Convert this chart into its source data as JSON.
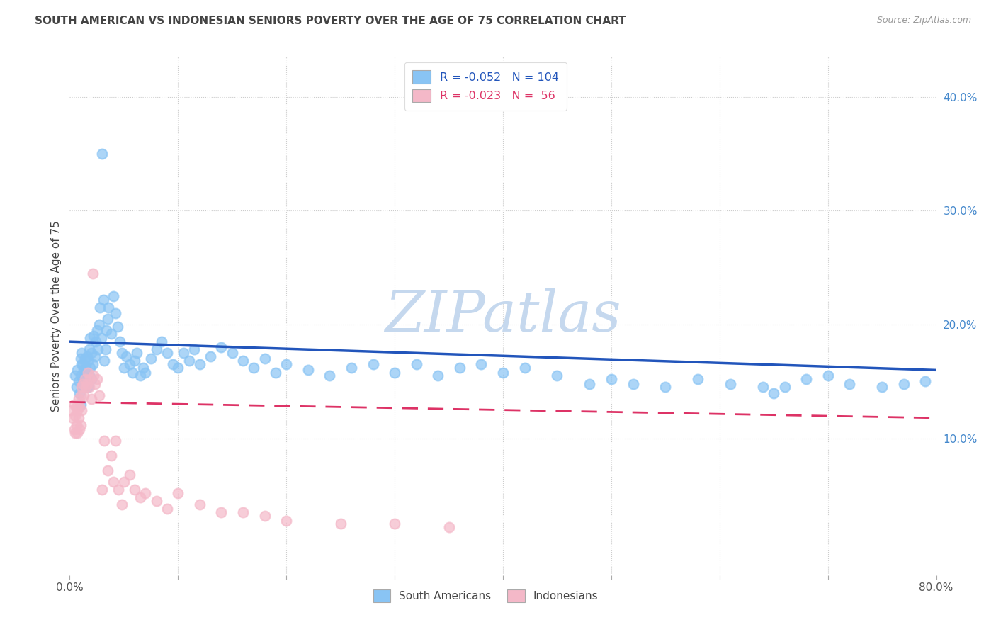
{
  "title": "SOUTH AMERICAN VS INDONESIAN SENIORS POVERTY OVER THE AGE OF 75 CORRELATION CHART",
  "source": "Source: ZipAtlas.com",
  "ylabel": "Seniors Poverty Over the Age of 75",
  "xlim": [
    0.0,
    0.8
  ],
  "ylim": [
    -0.02,
    0.435
  ],
  "blue_color": "#89C4F4",
  "blue_edge_color": "#89C4F4",
  "pink_color": "#F4B8C8",
  "pink_edge_color": "#F4B8C8",
  "blue_line_color": "#2255BB",
  "pink_line_color": "#DD3366",
  "watermark": "ZIPatlas",
  "watermark_color": "#C5D8EE",
  "legend_text_color": "#2255BB",
  "legend_blue_label": "South Americans",
  "legend_pink_label": "Indonesians",
  "blue_scatter_x": [
    0.005,
    0.006,
    0.007,
    0.008,
    0.009,
    0.01,
    0.01,
    0.01,
    0.011,
    0.011,
    0.012,
    0.012,
    0.013,
    0.013,
    0.014,
    0.014,
    0.015,
    0.015,
    0.016,
    0.016,
    0.017,
    0.017,
    0.018,
    0.018,
    0.019,
    0.019,
    0.02,
    0.02,
    0.021,
    0.022,
    0.023,
    0.024,
    0.025,
    0.026,
    0.027,
    0.028,
    0.029,
    0.03,
    0.031,
    0.032,
    0.033,
    0.034,
    0.035,
    0.036,
    0.038,
    0.04,
    0.042,
    0.044,
    0.046,
    0.048,
    0.05,
    0.052,
    0.055,
    0.058,
    0.06,
    0.062,
    0.065,
    0.068,
    0.07,
    0.075,
    0.08,
    0.085,
    0.09,
    0.095,
    0.1,
    0.105,
    0.11,
    0.115,
    0.12,
    0.13,
    0.14,
    0.15,
    0.16,
    0.17,
    0.18,
    0.19,
    0.2,
    0.22,
    0.24,
    0.26,
    0.28,
    0.3,
    0.32,
    0.34,
    0.36,
    0.38,
    0.4,
    0.42,
    0.45,
    0.48,
    0.5,
    0.52,
    0.55,
    0.58,
    0.61,
    0.64,
    0.65,
    0.66,
    0.68,
    0.7,
    0.72,
    0.75,
    0.77,
    0.79
  ],
  "blue_scatter_y": [
    0.155,
    0.145,
    0.16,
    0.15,
    0.14,
    0.155,
    0.17,
    0.13,
    0.165,
    0.175,
    0.15,
    0.165,
    0.16,
    0.145,
    0.155,
    0.17,
    0.148,
    0.162,
    0.158,
    0.172,
    0.145,
    0.168,
    0.178,
    0.155,
    0.162,
    0.188,
    0.152,
    0.175,
    0.165,
    0.19,
    0.172,
    0.185,
    0.195,
    0.178,
    0.2,
    0.215,
    0.188,
    0.35,
    0.222,
    0.168,
    0.178,
    0.195,
    0.205,
    0.215,
    0.192,
    0.225,
    0.21,
    0.198,
    0.185,
    0.175,
    0.162,
    0.172,
    0.165,
    0.158,
    0.168,
    0.175,
    0.155,
    0.162,
    0.158,
    0.17,
    0.178,
    0.185,
    0.175,
    0.165,
    0.162,
    0.175,
    0.168,
    0.178,
    0.165,
    0.172,
    0.18,
    0.175,
    0.168,
    0.162,
    0.17,
    0.158,
    0.165,
    0.16,
    0.155,
    0.162,
    0.165,
    0.158,
    0.165,
    0.155,
    0.162,
    0.165,
    0.158,
    0.162,
    0.155,
    0.148,
    0.152,
    0.148,
    0.145,
    0.152,
    0.148,
    0.145,
    0.14,
    0.145,
    0.152,
    0.155,
    0.148,
    0.145,
    0.148,
    0.15
  ],
  "pink_scatter_x": [
    0.002,
    0.003,
    0.004,
    0.004,
    0.005,
    0.005,
    0.006,
    0.006,
    0.007,
    0.007,
    0.008,
    0.008,
    0.009,
    0.009,
    0.01,
    0.01,
    0.011,
    0.011,
    0.012,
    0.013,
    0.014,
    0.015,
    0.016,
    0.017,
    0.018,
    0.019,
    0.02,
    0.021,
    0.022,
    0.023,
    0.025,
    0.027,
    0.03,
    0.032,
    0.035,
    0.038,
    0.04,
    0.042,
    0.045,
    0.048,
    0.05,
    0.055,
    0.06,
    0.065,
    0.07,
    0.08,
    0.09,
    0.1,
    0.12,
    0.14,
    0.16,
    0.18,
    0.2,
    0.25,
    0.3,
    0.35
  ],
  "pink_scatter_y": [
    0.125,
    0.118,
    0.13,
    0.108,
    0.12,
    0.105,
    0.128,
    0.112,
    0.125,
    0.105,
    0.135,
    0.118,
    0.128,
    0.108,
    0.138,
    0.112,
    0.145,
    0.125,
    0.148,
    0.138,
    0.152,
    0.145,
    0.148,
    0.158,
    0.145,
    0.152,
    0.135,
    0.245,
    0.155,
    0.148,
    0.152,
    0.138,
    0.055,
    0.098,
    0.072,
    0.085,
    0.062,
    0.098,
    0.055,
    0.042,
    0.062,
    0.068,
    0.055,
    0.048,
    0.052,
    0.045,
    0.038,
    0.052,
    0.042,
    0.035,
    0.035,
    0.032,
    0.028,
    0.025,
    0.025,
    0.022
  ],
  "blue_trend_x": [
    0.0,
    0.8
  ],
  "blue_trend_y": [
    0.185,
    0.16
  ],
  "pink_trend_x": [
    0.0,
    0.8
  ],
  "pink_trend_y": [
    0.132,
    0.118
  ],
  "background_color": "#FFFFFF",
  "grid_color": "#CCCCCC",
  "title_color": "#444444",
  "right_axis_color": "#4488CC"
}
